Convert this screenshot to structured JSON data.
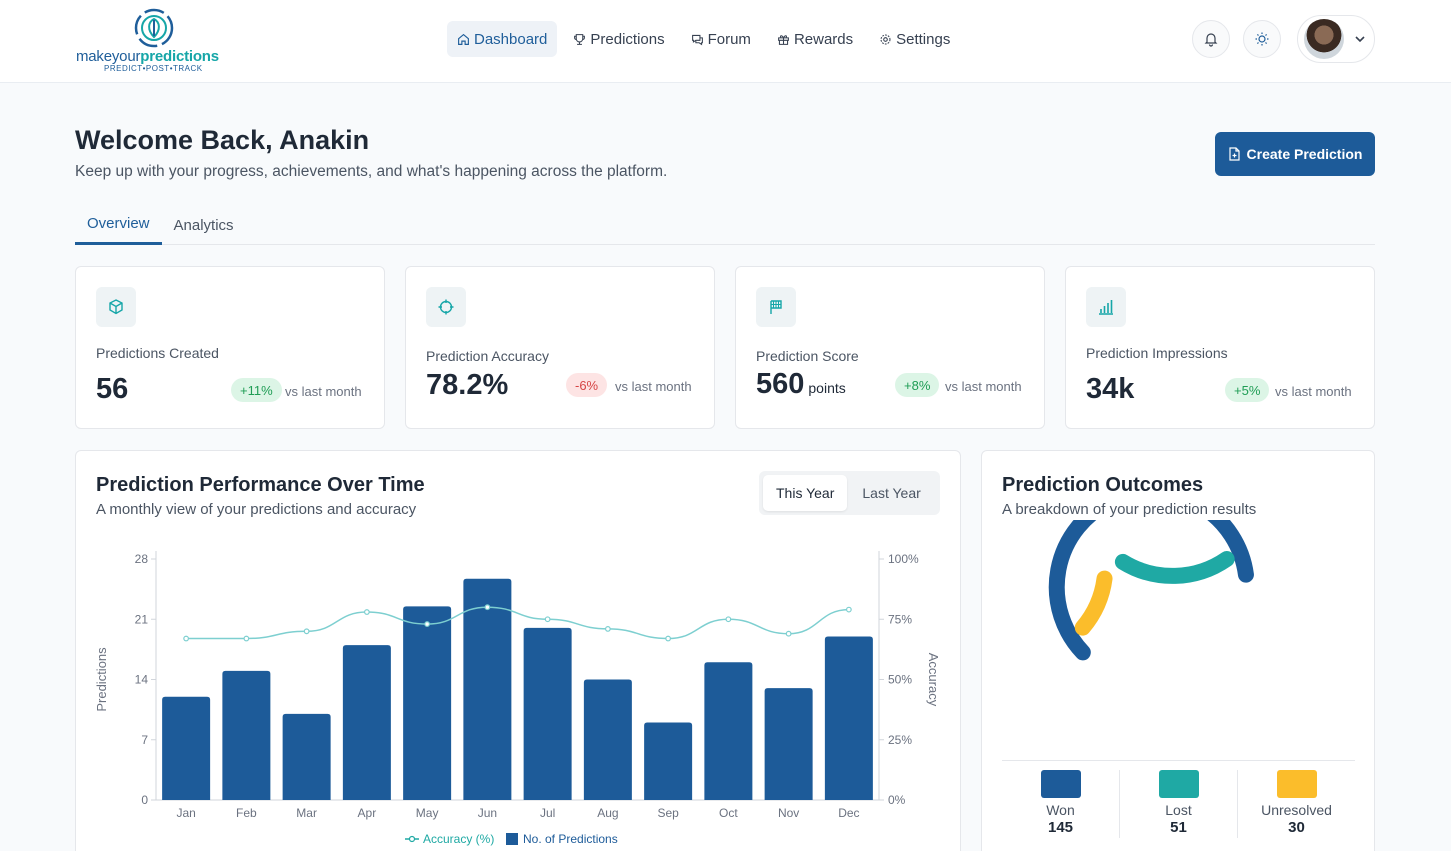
{
  "brand": {
    "name_part1": "makeyour",
    "name_part2": "predictions",
    "tagline": "PREDICT•POST•TRACK"
  },
  "nav": {
    "items": [
      {
        "label": "Dashboard",
        "icon": "home-icon",
        "active": true
      },
      {
        "label": "Predictions",
        "icon": "trophy-icon",
        "active": false
      },
      {
        "label": "Forum",
        "icon": "chat-icon",
        "active": false
      },
      {
        "label": "Rewards",
        "icon": "gift-icon",
        "active": false
      },
      {
        "label": "Settings",
        "icon": "gear-icon",
        "active": false
      }
    ]
  },
  "header": {
    "title": "Welcome Back, Anakin",
    "subtitle": "Keep up with your progress, achievements, and what's happening across the platform.",
    "create_label": "Create Prediction"
  },
  "tabs": [
    {
      "label": "Overview",
      "active": true
    },
    {
      "label": "Analytics",
      "active": false
    }
  ],
  "stats": [
    {
      "label": "Predictions Created",
      "value": "56",
      "unit": "",
      "change": "+11%",
      "trend": "up",
      "vs": "vs last month",
      "icon": "cube-icon"
    },
    {
      "label": "Prediction Accuracy",
      "value": "78.2%",
      "unit": "",
      "change": "-6%",
      "trend": "down",
      "vs": "vs last month",
      "icon": "crosshair-icon"
    },
    {
      "label": "Prediction Score",
      "value": "560",
      "unit": "points",
      "change": "+8%",
      "trend": "up",
      "vs": "vs last month",
      "icon": "flag-icon"
    },
    {
      "label": "Prediction Impressions",
      "value": "34k",
      "unit": "",
      "change": "+5%",
      "trend": "up",
      "vs": "vs last month",
      "icon": "bar-chart-icon"
    }
  ],
  "performance": {
    "title": "Prediction Performance Over Time",
    "subtitle": "A monthly view of your predictions and accuracy",
    "toggle": [
      "This Year",
      "Last Year"
    ]
  },
  "outcomes": {
    "title": "Prediction Outcomes",
    "subtitle": "A breakdown of your prediction results",
    "items": [
      {
        "label": "Won",
        "value": "145",
        "color": "#1d5b99"
      },
      {
        "label": "Lost",
        "value": "51",
        "color": "#1fa9a4"
      },
      {
        "label": "Unresolved",
        "value": "30",
        "color": "#fbbd2b"
      }
    ]
  },
  "chart_data": [
    {
      "type": "bar",
      "categories": [
        "Jan",
        "Feb",
        "Mar",
        "Apr",
        "May",
        "Jun",
        "Jul",
        "Aug",
        "Sep",
        "Oct",
        "Nov",
        "Dec"
      ],
      "series": [
        {
          "name": "No. of Predictions",
          "type": "bar",
          "axis": "left",
          "color": "#1d5b99",
          "values": [
            12,
            15,
            10,
            18,
            22.5,
            25.7,
            20,
            14,
            9,
            16,
            13,
            19
          ]
        },
        {
          "name": "Accuracy (%)",
          "type": "line",
          "axis": "right",
          "color": "#7dcfd0",
          "values": [
            67,
            67,
            70,
            78,
            73,
            80,
            75,
            71,
            67,
            75,
            69,
            79
          ]
        }
      ],
      "ylabel": "Predictions",
      "y2label": "Accuracy",
      "ylim": [
        0,
        28
      ],
      "y2lim": [
        0,
        100
      ],
      "yticks": [
        "0",
        "7",
        "14",
        "21",
        "28"
      ],
      "y2ticks": [
        "0%",
        "25%",
        "50%",
        "75%",
        "100%"
      ],
      "legend": "bottom"
    },
    {
      "type": "pie",
      "style": "donut",
      "categories": [
        "Won",
        "Lost",
        "Unresolved"
      ],
      "values": [
        145,
        51,
        30
      ],
      "colors": [
        "#1d5b99",
        "#1fa9a4",
        "#fbbd2b"
      ]
    }
  ]
}
